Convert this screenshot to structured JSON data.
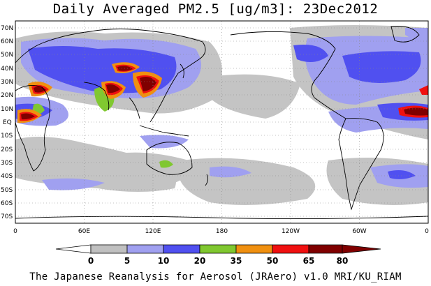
{
  "title": "Daily Averaged PM2.5 [ug/m3]: 23Dec2012",
  "footer": "The Japanese Reanalysis for Aerosol (JRAero) v1.0 MRI/KU_RIAM",
  "map": {
    "projection": "cylindrical-equidistant",
    "lon_range": [
      0,
      360
    ],
    "lat_range": [
      -75,
      75
    ],
    "grid": "dotted",
    "lat_labels": [
      "70N",
      "60N",
      "50N",
      "40N",
      "30N",
      "20N",
      "10N",
      "EQ",
      "10S",
      "20S",
      "30S",
      "40S",
      "50S",
      "60S",
      "70S"
    ],
    "lon_labels": [
      "0",
      "60E",
      "120E",
      "180",
      "120W",
      "60W",
      "0"
    ]
  },
  "colorbar": {
    "labels": [
      "0",
      "5",
      "10",
      "20",
      "35",
      "50",
      "65",
      "80"
    ],
    "colors": [
      "#ffffff",
      "#c0c0c0",
      "#a0a0f0",
      "#5050f0",
      "#80c830",
      "#f09010",
      "#f01010",
      "#800000"
    ]
  }
}
